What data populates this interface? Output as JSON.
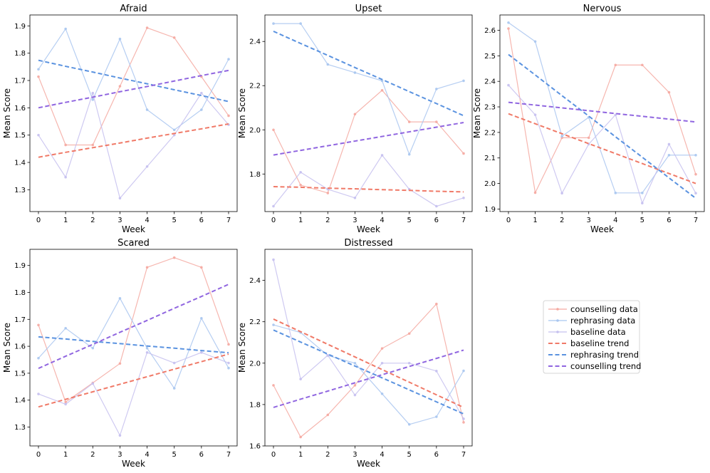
{
  "chart_data": [
    {
      "type": "line",
      "title": "Afraid",
      "xlabel": "Week",
      "ylabel": "Mean Score",
      "x": [
        0,
        1,
        2,
        3,
        4,
        5,
        6,
        7
      ],
      "xticks": [
        "0",
        "1",
        "2",
        "3",
        "4",
        "5",
        "6",
        "7"
      ],
      "ylim": [
        1.22,
        1.94
      ],
      "yticks": [
        1.3,
        1.4,
        1.5,
        1.6,
        1.7,
        1.8,
        1.9
      ],
      "ytick_labels": [
        "1.3",
        "1.4",
        "1.5",
        "1.6",
        "1.7",
        "1.8",
        "1.9"
      ],
      "series": [
        {
          "name": "counselling data",
          "kind": "data",
          "values": [
            1.714,
            1.464,
            1.464,
            1.679,
            1.893,
            1.857,
            1.714,
            1.571
          ]
        },
        {
          "name": "rephrasing data",
          "kind": "data",
          "values": [
            1.741,
            1.889,
            1.63,
            1.852,
            1.593,
            1.519,
            1.593,
            1.778
          ]
        },
        {
          "name": "baseline data",
          "kind": "data",
          "values": [
            1.5,
            1.346,
            1.654,
            1.269,
            1.385,
            1.5,
            1.654,
            1.538
          ]
        },
        {
          "name": "baseline trend",
          "kind": "trend",
          "values": [
            1.419,
            1.437,
            1.454,
            1.471,
            1.489,
            1.506,
            1.523,
            1.541
          ]
        },
        {
          "name": "rephrasing trend",
          "kind": "trend",
          "values": [
            1.774,
            1.752,
            1.731,
            1.709,
            1.688,
            1.666,
            1.645,
            1.623
          ]
        },
        {
          "name": "counselling trend",
          "kind": "trend",
          "values": [
            1.6,
            1.62,
            1.639,
            1.659,
            1.678,
            1.698,
            1.718,
            1.737
          ]
        }
      ]
    },
    {
      "type": "line",
      "title": "Upset",
      "xlabel": "Week",
      "ylabel": "Mean Score",
      "x": [
        0,
        1,
        2,
        3,
        4,
        5,
        6,
        7
      ],
      "xticks": [
        "0",
        "1",
        "2",
        "3",
        "4",
        "5",
        "6",
        "7"
      ],
      "ylim": [
        1.63,
        2.52
      ],
      "yticks": [
        1.8,
        2.0,
        2.2,
        2.4
      ],
      "ytick_labels": [
        "1.8",
        "2.0",
        "2.2",
        "2.4"
      ],
      "series": [
        {
          "name": "counselling data",
          "kind": "data",
          "values": [
            2.0,
            1.75,
            1.714,
            2.071,
            2.179,
            2.036,
            2.036,
            1.893
          ]
        },
        {
          "name": "rephrasing data",
          "kind": "data",
          "values": [
            2.481,
            2.481,
            2.296,
            2.259,
            2.222,
            1.889,
            2.185,
            2.222
          ]
        },
        {
          "name": "baseline data",
          "kind": "data",
          "values": [
            1.654,
            1.808,
            1.731,
            1.692,
            1.885,
            1.731,
            1.654,
            1.692
          ]
        },
        {
          "name": "baseline trend",
          "kind": "trend",
          "values": [
            1.743,
            1.74,
            1.736,
            1.733,
            1.729,
            1.726,
            1.722,
            1.719
          ]
        },
        {
          "name": "rephrasing trend",
          "kind": "trend",
          "values": [
            2.446,
            2.391,
            2.337,
            2.282,
            2.228,
            2.173,
            2.119,
            2.064
          ]
        },
        {
          "name": "counselling trend",
          "kind": "trend",
          "values": [
            1.886,
            1.907,
            1.928,
            1.949,
            1.97,
            1.991,
            2.012,
            2.033
          ]
        }
      ]
    },
    {
      "type": "line",
      "title": "Nervous",
      "xlabel": "Week",
      "ylabel": "Mean Score",
      "x": [
        0,
        1,
        2,
        3,
        4,
        5,
        6,
        7
      ],
      "xticks": [
        "0",
        "1",
        "2",
        "3",
        "4",
        "5",
        "6",
        "7"
      ],
      "ylim": [
        1.89,
        2.66
      ],
      "yticks": [
        1.9,
        2.0,
        2.1,
        2.2,
        2.3,
        2.4,
        2.5,
        2.6
      ],
      "ytick_labels": [
        "1.9",
        "2.0",
        "2.1",
        "2.2",
        "2.3",
        "2.4",
        "2.5",
        "2.6"
      ],
      "series": [
        {
          "name": "counselling data",
          "kind": "data",
          "values": [
            2.607,
            1.964,
            2.179,
            2.179,
            2.464,
            2.464,
            2.357,
            2.036
          ]
        },
        {
          "name": "rephrasing data",
          "kind": "data",
          "values": [
            2.63,
            2.556,
            2.185,
            2.259,
            1.963,
            1.963,
            2.111,
            2.111
          ]
        },
        {
          "name": "baseline data",
          "kind": "data",
          "values": [
            2.385,
            2.269,
            1.962,
            2.154,
            2.269,
            1.923,
            2.154,
            1.962
          ]
        },
        {
          "name": "baseline trend",
          "kind": "trend",
          "values": [
            2.273,
            2.234,
            2.195,
            2.156,
            2.117,
            2.078,
            2.039,
            2.0
          ]
        },
        {
          "name": "rephrasing trend",
          "kind": "trend",
          "values": [
            2.505,
            2.425,
            2.344,
            2.264,
            2.183,
            2.103,
            2.022,
            1.942
          ]
        },
        {
          "name": "counselling trend",
          "kind": "trend",
          "values": [
            2.318,
            2.307,
            2.296,
            2.285,
            2.274,
            2.263,
            2.252,
            2.241
          ]
        }
      ]
    },
    {
      "type": "line",
      "title": "Scared",
      "xlabel": "Week",
      "ylabel": "Mean Score",
      "x": [
        0,
        1,
        2,
        3,
        4,
        5,
        6,
        7
      ],
      "xticks": [
        "0",
        "1",
        "2",
        "3",
        "4",
        "5",
        "6",
        "7"
      ],
      "ylim": [
        1.23,
        1.96
      ],
      "yticks": [
        1.3,
        1.4,
        1.5,
        1.6,
        1.7,
        1.8,
        1.9
      ],
      "ytick_labels": [
        "1.3",
        "1.4",
        "1.5",
        "1.6",
        "1.7",
        "1.8",
        "1.9"
      ],
      "series": [
        {
          "name": "counselling data",
          "kind": "data",
          "values": [
            1.679,
            1.393,
            1.464,
            1.536,
            1.893,
            1.929,
            1.893,
            1.607
          ]
        },
        {
          "name": "rephrasing data",
          "kind": "data",
          "values": [
            1.556,
            1.667,
            1.593,
            1.778,
            1.593,
            1.444,
            1.704,
            1.519
          ]
        },
        {
          "name": "baseline data",
          "kind": "data",
          "values": [
            1.423,
            1.385,
            1.462,
            1.269,
            1.577,
            1.538,
            1.577,
            1.538
          ]
        },
        {
          "name": "baseline trend",
          "kind": "trend",
          "values": [
            1.375,
            1.403,
            1.431,
            1.459,
            1.487,
            1.515,
            1.543,
            1.571
          ]
        },
        {
          "name": "rephrasing trend",
          "kind": "trend",
          "values": [
            1.635,
            1.627,
            1.618,
            1.61,
            1.601,
            1.593,
            1.584,
            1.576
          ]
        },
        {
          "name": "counselling trend",
          "kind": "trend",
          "values": [
            1.518,
            1.563,
            1.607,
            1.652,
            1.696,
            1.741,
            1.785,
            1.83
          ]
        }
      ]
    },
    {
      "type": "line",
      "title": "Distressed",
      "xlabel": "Week",
      "ylabel": "Mean Score",
      "x": [
        0,
        1,
        2,
        3,
        4,
        5,
        6,
        7
      ],
      "xticks": [
        "0",
        "1",
        "2",
        "3",
        "4",
        "5",
        "6",
        "7"
      ],
      "ylim": [
        1.6,
        2.55
      ],
      "yticks": [
        1.6,
        1.8,
        2.0,
        2.2,
        2.4
      ],
      "ytick_labels": [
        "1.6",
        "1.8",
        "2.0",
        "2.2",
        "2.4"
      ],
      "series": [
        {
          "name": "counselling data",
          "kind": "data",
          "values": [
            1.893,
            1.643,
            1.75,
            1.893,
            2.071,
            2.143,
            2.286,
            1.714
          ]
        },
        {
          "name": "rephrasing data",
          "kind": "data",
          "values": [
            2.185,
            2.148,
            2.037,
            2.0,
            1.852,
            1.704,
            1.741,
            1.963
          ]
        },
        {
          "name": "baseline data",
          "kind": "data",
          "values": [
            2.5,
            1.923,
            2.038,
            1.846,
            2.0,
            2.0,
            1.962,
            1.731
          ]
        },
        {
          "name": "baseline trend",
          "kind": "trend",
          "values": [
            2.213,
            2.152,
            2.091,
            2.03,
            1.969,
            1.908,
            1.847,
            1.786
          ]
        },
        {
          "name": "rephrasing trend",
          "kind": "trend",
          "values": [
            2.16,
            2.102,
            2.044,
            1.986,
            1.929,
            1.871,
            1.813,
            1.755
          ]
        },
        {
          "name": "counselling trend",
          "kind": "trend",
          "values": [
            1.786,
            1.826,
            1.865,
            1.905,
            1.944,
            1.984,
            2.023,
            2.063
          ]
        }
      ]
    }
  ],
  "legend": {
    "placement": "lower-right",
    "entries": [
      {
        "label": "counselling data",
        "color": "#f5a9a1",
        "kind": "data"
      },
      {
        "label": "rephrasing data",
        "color": "#a9c6f0",
        "kind": "data"
      },
      {
        "label": "baseline data",
        "color": "#c5c0ef",
        "kind": "data"
      },
      {
        "label": "baseline trend",
        "color": "#f07a68",
        "kind": "trend"
      },
      {
        "label": "rephrasing trend",
        "color": "#5b93e0",
        "kind": "trend"
      },
      {
        "label": "counselling trend",
        "color": "#9066e0",
        "kind": "trend"
      }
    ]
  },
  "colors": {
    "counselling data": "#f5a9a1",
    "rephrasing data": "#a9c6f0",
    "baseline data": "#c5c0ef",
    "baseline trend": "#f07a68",
    "rephrasing trend": "#5b93e0",
    "counselling trend": "#9066e0"
  }
}
